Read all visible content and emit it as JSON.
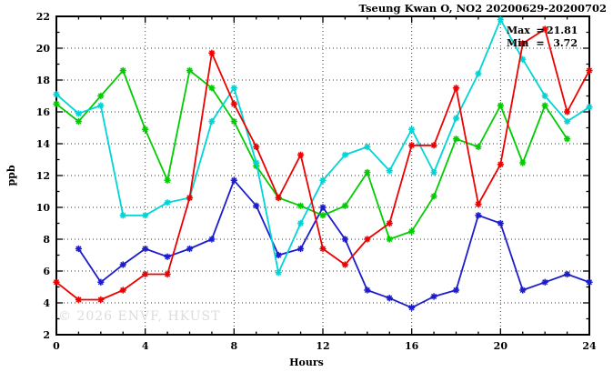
{
  "header": {
    "title": "Tseung Kwan O, NO2 20200629-20200702"
  },
  "legend": {
    "max_label": "Max",
    "min_label": "Min",
    "eq": "=",
    "max_value": "21.81",
    "min_value": "3.72"
  },
  "watermark": "© 2026 ENVF, HKUST",
  "colors": {
    "red": "#ee0000",
    "green": "#00cc00",
    "blue": "#1c1ccc",
    "cyan": "#00d5d5",
    "grid": "#3a3a3a",
    "frame": "#000000",
    "watermark": "#dcdcdc"
  },
  "chart_data": {
    "type": "line",
    "title": "Tseung Kwan O, NO2 20200629-20200702",
    "xlabel": "Hours",
    "ylabel": "ppb",
    "xlim": [
      0,
      24
    ],
    "ylim": [
      2,
      22
    ],
    "x_major_ticks": [
      0,
      4,
      8,
      12,
      16,
      20,
      24
    ],
    "x_minor_step": 1,
    "y_major_ticks": [
      2,
      4,
      6,
      8,
      10,
      12,
      14,
      16,
      18,
      20,
      22
    ],
    "y_minor_step": 1,
    "grid": "dotted",
    "legend_position": "top-right-inside",
    "annotations": [
      {
        "text": "Max = 21.81"
      },
      {
        "text": "Min =  3.72"
      }
    ],
    "series": [
      {
        "name": "blue",
        "color": "#1c1ccc",
        "marker": "star",
        "x": [
          1,
          2,
          3,
          4,
          5,
          6,
          7,
          8,
          9,
          10,
          11,
          12,
          13,
          14,
          15,
          16,
          17,
          18,
          19,
          20,
          21,
          22,
          23,
          24
        ],
        "y": [
          7.4,
          5.3,
          6.4,
          7.4,
          6.9,
          7.4,
          8.0,
          11.7,
          10.1,
          7.0,
          7.4,
          10.0,
          8.0,
          4.8,
          4.3,
          3.7,
          4.4,
          4.8,
          9.5,
          9.0,
          4.8,
          5.3,
          5.8,
          5.3
        ]
      },
      {
        "name": "green",
        "color": "#00cc00",
        "marker": "star",
        "x": [
          0,
          1,
          2,
          3,
          4,
          5,
          6,
          7,
          8,
          9,
          10,
          11,
          12,
          13,
          14,
          15,
          16,
          17,
          18,
          19,
          20,
          21,
          22,
          23
        ],
        "y": [
          16.5,
          15.4,
          17.0,
          18.6,
          14.9,
          11.7,
          18.6,
          17.5,
          15.4,
          12.6,
          10.6,
          10.1,
          9.5,
          10.1,
          12.2,
          8.0,
          8.5,
          10.7,
          14.3,
          13.8,
          16.4,
          12.8,
          16.4,
          14.3
        ]
      },
      {
        "name": "cyan",
        "color": "#00d5d5",
        "marker": "star",
        "x": [
          0,
          1,
          2,
          3,
          4,
          5,
          6,
          7,
          8,
          9,
          10,
          11,
          12,
          13,
          14,
          15,
          16,
          17,
          18,
          19,
          20,
          21,
          22,
          23,
          24
        ],
        "y": [
          17.1,
          15.9,
          16.4,
          9.5,
          9.5,
          10.3,
          10.6,
          15.4,
          17.5,
          12.8,
          5.9,
          9.0,
          11.7,
          13.3,
          13.8,
          12.3,
          14.9,
          12.2,
          15.6,
          18.4,
          21.8,
          19.3,
          17.0,
          15.4,
          16.3
        ]
      },
      {
        "name": "red",
        "color": "#ee0000",
        "marker": "star",
        "x": [
          0,
          1,
          2,
          3,
          4,
          5,
          6,
          7,
          8,
          9,
          10,
          11,
          12,
          13,
          14,
          15,
          16,
          17,
          18,
          19,
          20,
          21,
          22,
          23,
          24
        ],
        "y": [
          5.3,
          4.2,
          4.2,
          4.8,
          5.8,
          5.8,
          10.6,
          19.7,
          16.5,
          13.8,
          10.6,
          13.3,
          7.4,
          6.4,
          8.0,
          9.0,
          13.9,
          13.9,
          17.5,
          10.2,
          12.7,
          20.3,
          21.2,
          16.0,
          18.6
        ]
      }
    ]
  }
}
